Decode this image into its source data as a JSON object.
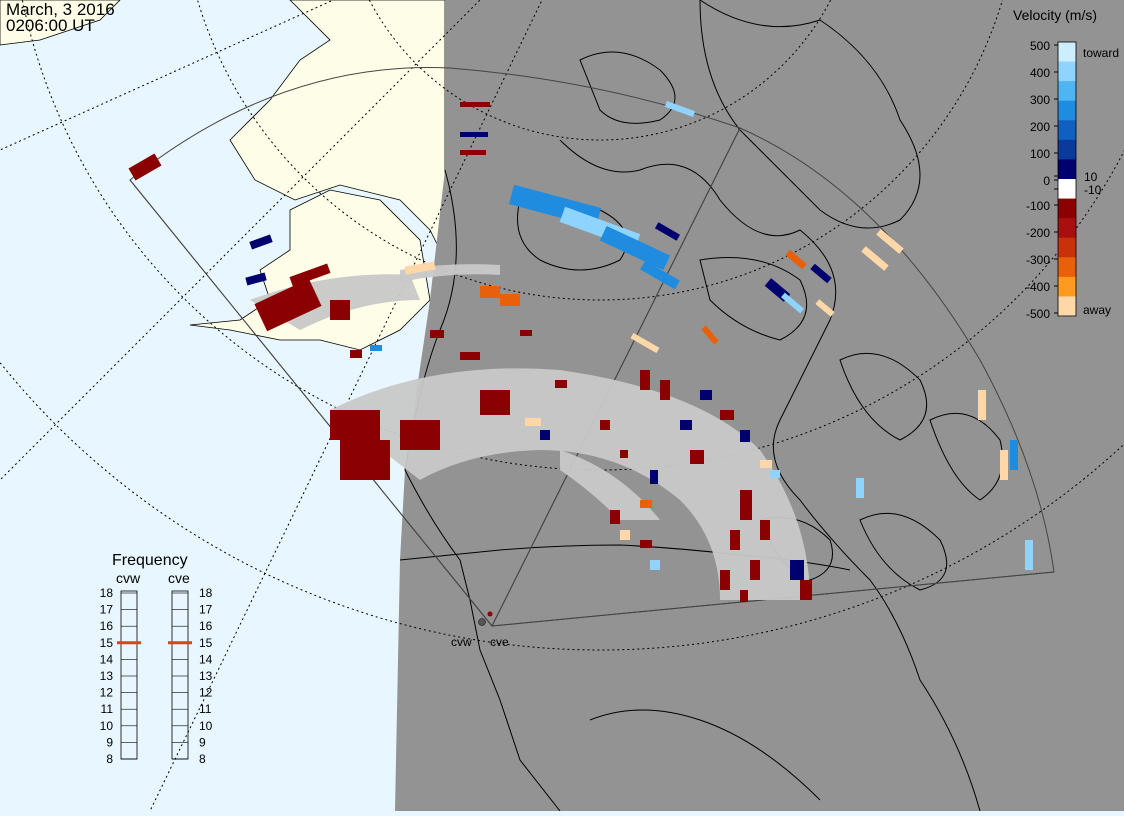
{
  "header": {
    "date": "March, 3 2016",
    "time": "0206:00 UT"
  },
  "velocity_legend": {
    "title": "Velocity (m/s)",
    "ticks": [
      "500",
      "400",
      "300",
      "200",
      "100",
      "10",
      "0",
      "-10",
      "-100",
      "-200",
      "-300",
      "-400",
      "-500"
    ],
    "toward_label": "toward",
    "away_label": "away",
    "colors": [
      "#cdeeff",
      "#8fd3ff",
      "#4fb4f2",
      "#1f8ce0",
      "#1060c0",
      "#0a3a9a",
      "#00006e",
      "#ffffff",
      "#8b0000",
      "#a81010",
      "#c8320a",
      "#e8600a",
      "#ff9a20",
      "#ffd7a8"
    ]
  },
  "frequency_panel": {
    "title": "Frequency",
    "radars": [
      {
        "name": "cvw",
        "selected": "15"
      },
      {
        "name": "cve",
        "selected": "15"
      }
    ],
    "ticks": [
      "18",
      "17",
      "16",
      "15",
      "14",
      "13",
      "12",
      "11",
      "10",
      "9",
      "8"
    ]
  },
  "radar_labels": {
    "west": "cvw",
    "east": "cve"
  },
  "map_colors": {
    "ocean_day": "#e8f6ff",
    "land_day": "#fdfde8",
    "night_shade": "#939393",
    "ground_scatter": "#c8c8c8",
    "coast": "#000000",
    "grid": "#000000"
  }
}
